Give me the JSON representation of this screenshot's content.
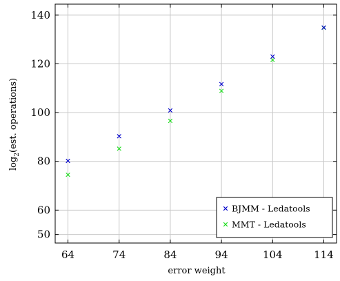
{
  "chart_data": {
    "type": "scatter",
    "title": "",
    "xlabel": "error weight",
    "ylabel_main": "log",
    "ylabel_sub": "2",
    "ylabel_rest": "(est. operations)",
    "x_ticks": [
      64,
      74,
      84,
      94,
      104,
      114
    ],
    "y_ticks": [
      50,
      60,
      80,
      100,
      120,
      140
    ],
    "xlim": [
      61.5,
      116.5
    ],
    "ylim": [
      46.5,
      144.5
    ],
    "grid": true,
    "legend_position": "bottom-right",
    "marker": "×",
    "series": [
      {
        "name": "BJMM - Ledatools",
        "color": "#0000cc",
        "x": [
          64,
          74,
          84,
          94,
          104,
          114
        ],
        "y": [
          80.2,
          90.3,
          100.9,
          111.7,
          123.0,
          134.9
        ]
      },
      {
        "name": "MMT - Ledatools",
        "color": "#22dd22",
        "x": [
          64,
          74,
          84,
          94,
          104,
          114
        ],
        "y": [
          74.5,
          85.2,
          96.6,
          108.9,
          121.6,
          134.8
        ]
      }
    ]
  }
}
